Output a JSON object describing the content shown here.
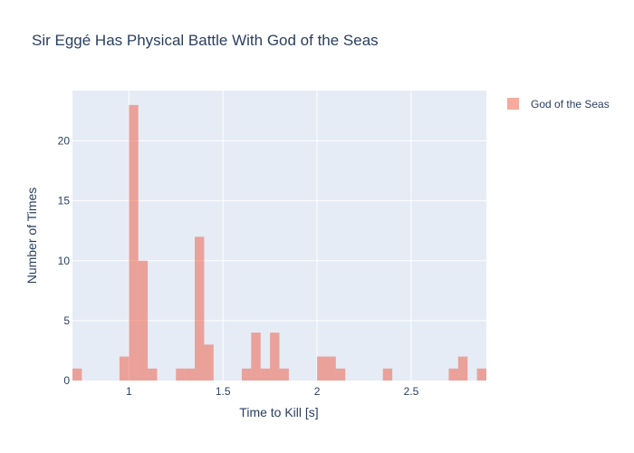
{
  "chart_data": {
    "type": "bar",
    "subtype": "histogram",
    "title": "Sir Eggé Has Physical Battle With God of the Seas",
    "xlabel": "Time to Kill [s]",
    "ylabel": "Number of Times",
    "xlim": [
      0.7,
      2.9
    ],
    "ylim": [
      0,
      24.2
    ],
    "x_ticks": [
      1,
      1.5,
      2,
      2.5
    ],
    "x_tick_labels": [
      "1",
      "1.5",
      "2",
      "2.5"
    ],
    "y_ticks": [
      0,
      5,
      10,
      15,
      20
    ],
    "y_tick_labels": [
      "0",
      "5",
      "10",
      "15",
      "20"
    ],
    "bin_width": 0.05,
    "grid": true,
    "legend_position": "top-right",
    "colors": {
      "plot_bg": "#e5ecf6",
      "grid": "#ffffff",
      "bar": "#ef553b",
      "bar_opacity": 0.5,
      "text": "#2a3f5f"
    },
    "series": [
      {
        "name": "God of the Seas",
        "bins": [
          {
            "start": 0.7,
            "count": 1
          },
          {
            "start": 0.95,
            "count": 2
          },
          {
            "start": 1.0,
            "count": 23
          },
          {
            "start": 1.05,
            "count": 10
          },
          {
            "start": 1.1,
            "count": 1
          },
          {
            "start": 1.25,
            "count": 1
          },
          {
            "start": 1.3,
            "count": 1
          },
          {
            "start": 1.35,
            "count": 12
          },
          {
            "start": 1.4,
            "count": 3
          },
          {
            "start": 1.6,
            "count": 1
          },
          {
            "start": 1.65,
            "count": 4
          },
          {
            "start": 1.7,
            "count": 1
          },
          {
            "start": 1.75,
            "count": 4
          },
          {
            "start": 1.8,
            "count": 1
          },
          {
            "start": 2.0,
            "count": 2
          },
          {
            "start": 2.05,
            "count": 2
          },
          {
            "start": 2.1,
            "count": 1
          },
          {
            "start": 2.35,
            "count": 1
          },
          {
            "start": 2.7,
            "count": 1
          },
          {
            "start": 2.75,
            "count": 2
          },
          {
            "start": 2.85,
            "count": 1
          }
        ]
      }
    ]
  }
}
